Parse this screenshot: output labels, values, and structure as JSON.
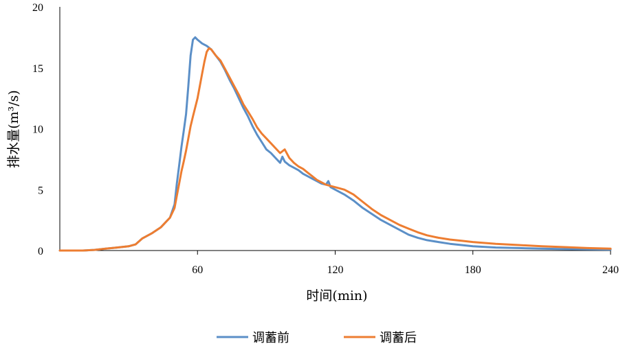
{
  "chart_data": {
    "type": "line",
    "title": "",
    "xlabel": "时间(min)",
    "ylabel": "排水量(m³/s)",
    "xlim": [
      0,
      240
    ],
    "ylim": [
      0,
      20
    ],
    "x_ticks": [
      60,
      120,
      180,
      240
    ],
    "y_ticks": [
      0,
      5,
      10,
      15,
      20
    ],
    "grid": false,
    "legend_position": "bottom-center",
    "series": [
      {
        "name": "调蓄前",
        "color": "#5b8fc7",
        "points": [
          [
            0,
            0
          ],
          [
            10,
            0
          ],
          [
            15,
            0.05
          ],
          [
            20,
            0.15
          ],
          [
            25,
            0.25
          ],
          [
            30,
            0.35
          ],
          [
            33,
            0.5
          ],
          [
            36,
            1.0
          ],
          [
            40,
            1.4
          ],
          [
            44,
            1.9
          ],
          [
            46,
            2.3
          ],
          [
            48,
            2.7
          ],
          [
            50,
            3.8
          ],
          [
            51,
            5.5
          ],
          [
            52,
            7.0
          ],
          [
            53,
            8.5
          ],
          [
            54,
            9.8
          ],
          [
            55,
            11.2
          ],
          [
            56,
            13.5
          ],
          [
            57,
            16.0
          ],
          [
            58,
            17.3
          ],
          [
            59,
            17.5
          ],
          [
            60,
            17.3
          ],
          [
            62,
            17.0
          ],
          [
            64,
            16.8
          ],
          [
            66,
            16.5
          ],
          [
            68,
            16.0
          ],
          [
            70,
            15.5
          ],
          [
            72,
            14.8
          ],
          [
            74,
            14.0
          ],
          [
            76,
            13.3
          ],
          [
            78,
            12.5
          ],
          [
            80,
            11.7
          ],
          [
            82,
            11.0
          ],
          [
            84,
            10.2
          ],
          [
            86,
            9.5
          ],
          [
            88,
            8.9
          ],
          [
            90,
            8.3
          ],
          [
            92,
            8.0
          ],
          [
            94,
            7.6
          ],
          [
            96,
            7.2
          ],
          [
            97,
            7.7
          ],
          [
            98,
            7.3
          ],
          [
            100,
            7.0
          ],
          [
            102,
            6.8
          ],
          [
            104,
            6.6
          ],
          [
            106,
            6.3
          ],
          [
            108,
            6.1
          ],
          [
            110,
            5.9
          ],
          [
            112,
            5.7
          ],
          [
            114,
            5.5
          ],
          [
            116,
            5.4
          ],
          [
            117,
            5.7
          ],
          [
            118,
            5.2
          ],
          [
            120,
            5.0
          ],
          [
            124,
            4.6
          ],
          [
            128,
            4.1
          ],
          [
            132,
            3.5
          ],
          [
            136,
            3.0
          ],
          [
            140,
            2.5
          ],
          [
            144,
            2.1
          ],
          [
            148,
            1.7
          ],
          [
            152,
            1.3
          ],
          [
            156,
            1.05
          ],
          [
            160,
            0.85
          ],
          [
            165,
            0.7
          ],
          [
            170,
            0.55
          ],
          [
            175,
            0.45
          ],
          [
            180,
            0.35
          ],
          [
            190,
            0.25
          ],
          [
            200,
            0.2
          ],
          [
            210,
            0.15
          ],
          [
            220,
            0.12
          ],
          [
            230,
            0.1
          ],
          [
            240,
            0.08
          ]
        ]
      },
      {
        "name": "调蓄后",
        "color": "#ed7d31",
        "points": [
          [
            0,
            0
          ],
          [
            10,
            0
          ],
          [
            15,
            0.05
          ],
          [
            20,
            0.15
          ],
          [
            25,
            0.25
          ],
          [
            30,
            0.35
          ],
          [
            33,
            0.5
          ],
          [
            36,
            1.0
          ],
          [
            40,
            1.4
          ],
          [
            44,
            1.9
          ],
          [
            46,
            2.3
          ],
          [
            48,
            2.7
          ],
          [
            50,
            3.5
          ],
          [
            51,
            4.5
          ],
          [
            52,
            5.5
          ],
          [
            53,
            6.5
          ],
          [
            54,
            7.3
          ],
          [
            55,
            8.2
          ],
          [
            56,
            9.2
          ],
          [
            57,
            10.2
          ],
          [
            58,
            11.0
          ],
          [
            60,
            12.5
          ],
          [
            62,
            14.5
          ],
          [
            63,
            15.5
          ],
          [
            64,
            16.3
          ],
          [
            65,
            16.6
          ],
          [
            66,
            16.5
          ],
          [
            68,
            16.0
          ],
          [
            70,
            15.6
          ],
          [
            72,
            14.9
          ],
          [
            74,
            14.2
          ],
          [
            76,
            13.5
          ],
          [
            78,
            12.8
          ],
          [
            80,
            12.0
          ],
          [
            82,
            11.4
          ],
          [
            84,
            10.8
          ],
          [
            86,
            10.1
          ],
          [
            88,
            9.6
          ],
          [
            90,
            9.2
          ],
          [
            92,
            8.8
          ],
          [
            94,
            8.4
          ],
          [
            96,
            8.0
          ],
          [
            98,
            8.3
          ],
          [
            100,
            7.6
          ],
          [
            102,
            7.2
          ],
          [
            104,
            6.9
          ],
          [
            106,
            6.7
          ],
          [
            108,
            6.4
          ],
          [
            110,
            6.1
          ],
          [
            112,
            5.8
          ],
          [
            114,
            5.6
          ],
          [
            116,
            5.4
          ],
          [
            118,
            5.3
          ],
          [
            120,
            5.2
          ],
          [
            124,
            5.0
          ],
          [
            128,
            4.6
          ],
          [
            132,
            4.0
          ],
          [
            136,
            3.4
          ],
          [
            140,
            2.9
          ],
          [
            144,
            2.5
          ],
          [
            148,
            2.1
          ],
          [
            152,
            1.8
          ],
          [
            156,
            1.5
          ],
          [
            160,
            1.25
          ],
          [
            165,
            1.05
          ],
          [
            170,
            0.9
          ],
          [
            175,
            0.8
          ],
          [
            180,
            0.7
          ],
          [
            190,
            0.55
          ],
          [
            200,
            0.45
          ],
          [
            210,
            0.35
          ],
          [
            220,
            0.28
          ],
          [
            230,
            0.2
          ],
          [
            240,
            0.15
          ]
        ]
      }
    ]
  }
}
